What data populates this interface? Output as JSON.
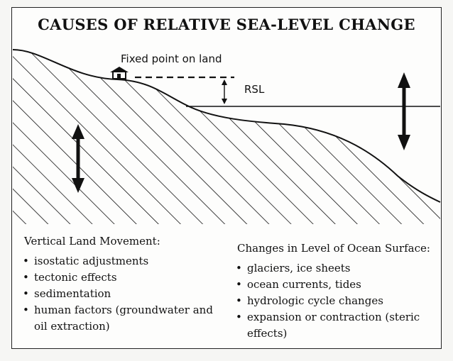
{
  "title": "CAUSES OF RELATIVE SEA-LEVEL CHANGE",
  "labels": {
    "fixed_point": "Fixed point on land",
    "rsl": "RSL"
  },
  "left_column": {
    "heading": "Vertical Land Movement:",
    "items": [
      {
        "line1": "isostatic adjustments"
      },
      {
        "line1": "tectonic effects"
      },
      {
        "line1": "sedimentation"
      },
      {
        "line1": "human factors (groundwater and",
        "line2": "oil extraction)"
      }
    ]
  },
  "right_column": {
    "heading": "Changes in Level of Ocean Surface:",
    "items": [
      {
        "line1": "glaciers, ice sheets"
      },
      {
        "line1": "ocean currents, tides"
      },
      {
        "line1": "hydrologic cycle changes"
      },
      {
        "line1": "expansion or contraction (steric",
        "line2": "effects)"
      }
    ]
  },
  "icons": {
    "house": "house-icon",
    "land_arrow": "double-arrow-icon",
    "ocean_arrow": "double-arrow-icon"
  }
}
